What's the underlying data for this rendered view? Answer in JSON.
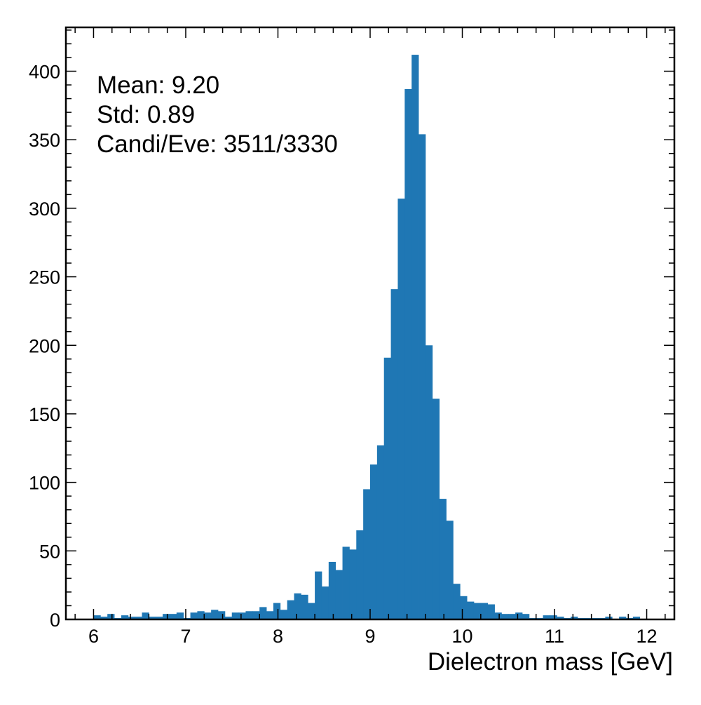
{
  "chart_data": {
    "type": "bar",
    "title": "",
    "xlabel": "Dielectron mass [GeV]",
    "ylabel": "",
    "xlim": [
      5.7,
      12.3
    ],
    "ylim": [
      0,
      432
    ],
    "x_ticks": [
      6,
      7,
      8,
      9,
      10,
      11,
      12
    ],
    "x_tick_labels": [
      "6",
      "7",
      "8",
      "9",
      "10",
      "11",
      "12"
    ],
    "y_ticks": [
      0,
      50,
      100,
      150,
      200,
      250,
      300,
      350,
      400
    ],
    "y_tick_labels": [
      "0",
      "50",
      "100",
      "150",
      "200",
      "250",
      "300",
      "350",
      "400"
    ],
    "bin_start": 6.0,
    "bin_width": 0.075,
    "values": [
      3,
      2,
      4,
      1,
      3,
      2,
      2,
      5,
      2,
      2,
      4,
      4,
      5,
      1,
      5,
      6,
      5,
      7,
      6,
      2,
      5,
      5,
      6,
      6,
      9,
      6,
      12,
      7,
      14,
      19,
      18,
      12,
      35,
      24,
      42,
      36,
      53,
      51,
      65,
      95,
      113,
      127,
      191,
      241,
      307,
      387,
      412,
      354,
      200,
      161,
      88,
      72,
      26,
      17,
      13,
      12,
      12,
      11,
      5,
      4,
      4,
      5,
      4,
      1,
      1,
      3,
      3,
      2,
      1,
      2,
      1,
      1,
      1,
      1,
      2,
      0,
      2,
      1,
      2
    ],
    "color": "#1f77b4",
    "grid": false,
    "annotations": [
      "Mean: 9.20",
      "Std: 0.89",
      "Candi/Eve: 3511/3330"
    ]
  }
}
